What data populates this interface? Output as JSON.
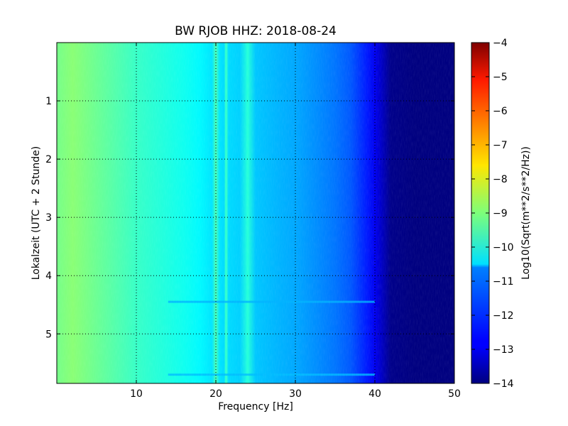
{
  "chart_data": {
    "type": "heatmap",
    "title": "BW RJOB HHZ: 2018-08-24",
    "xlabel": "Frequency [Hz]",
    "ylabel": "Lokalzeit (UTC + 2 Stunde)",
    "xlim": [
      0,
      50
    ],
    "ylim": [
      5.85,
      0
    ],
    "x_ticks": [
      10,
      20,
      30,
      40,
      50
    ],
    "y_ticks": [
      1,
      2,
      3,
      4,
      5
    ],
    "grid": true,
    "colorbar": {
      "label": "Log10(Sqrt(m**2/s**2/Hz))",
      "range": [
        -14,
        -4
      ],
      "ticks": [
        -4,
        -5,
        -6,
        -7,
        -8,
        -9,
        -10,
        -11,
        -12,
        -13,
        -14
      ],
      "colormap": "jet"
    },
    "spectral_profile": {
      "frequency_hz": [
        0,
        2,
        5,
        8,
        10,
        13,
        16,
        18,
        19.5,
        20,
        20.5,
        21,
        21.3,
        21.6,
        23,
        24,
        25,
        28,
        30,
        33,
        35,
        37,
        38,
        39,
        40,
        41,
        42,
        45,
        50
      ],
      "log10_amplitude": [
        -9.1,
        -8.9,
        -9.2,
        -9.5,
        -9.7,
        -9.9,
        -10.1,
        -10.3,
        -10.5,
        -9.6,
        -10.5,
        -10.6,
        -9.8,
        -10.6,
        -10.7,
        -9.9,
        -10.8,
        -11.0,
        -11.1,
        -11.4,
        -11.6,
        -11.9,
        -12.2,
        -12.5,
        -12.9,
        -13.4,
        -13.9,
        -14.0,
        -14.0
      ]
    },
    "lines": [
      {
        "frequency_hz": 20.0,
        "log10_amplitude": -9.6
      },
      {
        "frequency_hz": 21.3,
        "log10_amplitude": -9.8
      },
      {
        "frequency_hz": 24.0,
        "log10_amplitude": -9.9
      }
    ],
    "horizontal_bands": [
      {
        "hour": 4.45,
        "log10_amplitude": -11.0
      },
      {
        "hour": 5.7,
        "log10_amplitude": -10.9
      }
    ]
  }
}
